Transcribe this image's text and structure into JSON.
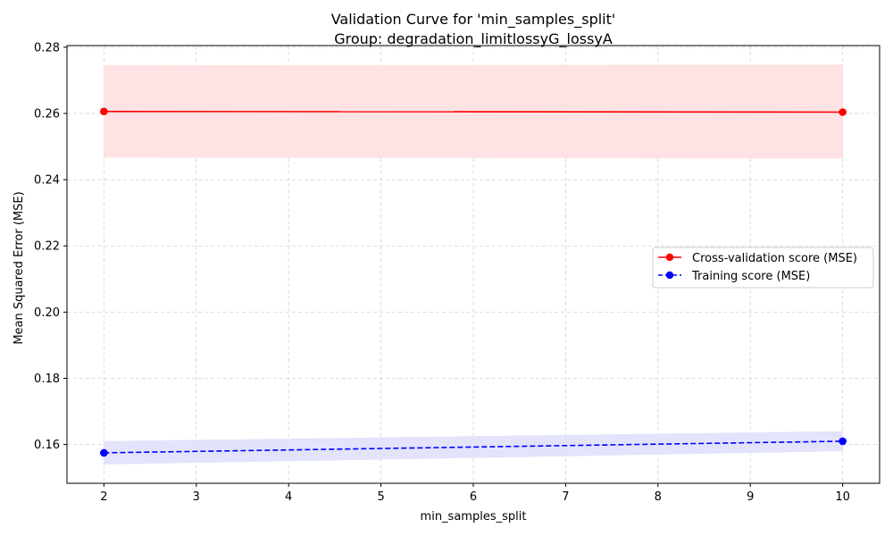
{
  "chart_data": {
    "type": "line",
    "title": "Validation Curve for 'min_samples_split'",
    "subtitle": "Group: degradation_limitlossyG_lossyA",
    "xlabel": "min_samples_split",
    "ylabel": "Mean Squared Error (MSE)",
    "xlim": [
      1.6,
      10.4
    ],
    "ylim": [
      0.1483,
      0.2805
    ],
    "x_ticks": [
      2,
      3,
      4,
      5,
      6,
      7,
      8,
      9,
      10
    ],
    "y_ticks": [
      0.16,
      0.18,
      0.2,
      0.22,
      0.24,
      0.26,
      0.28
    ],
    "grid": true,
    "legend_position": "center-right",
    "series": [
      {
        "name": "Cross-validation score (MSE)",
        "x": [
          2,
          10
        ],
        "y": [
          0.2606,
          0.2604
        ],
        "band_lower": [
          0.2468,
          0.2465
        ],
        "band_upper": [
          0.2744,
          0.2746
        ],
        "color": "#ff0000",
        "band_color": "#ffe2e3",
        "line_style": "solid",
        "marker": "circle"
      },
      {
        "name": "Training score (MSE)",
        "x": [
          2,
          10
        ],
        "y": [
          0.1575,
          0.161
        ],
        "band_lower": [
          0.1541,
          0.1581
        ],
        "band_upper": [
          0.1609,
          0.1639
        ],
        "color": "#0000ff",
        "band_color": "#e3e3fb",
        "line_style": "dashed",
        "marker": "circle"
      }
    ]
  }
}
